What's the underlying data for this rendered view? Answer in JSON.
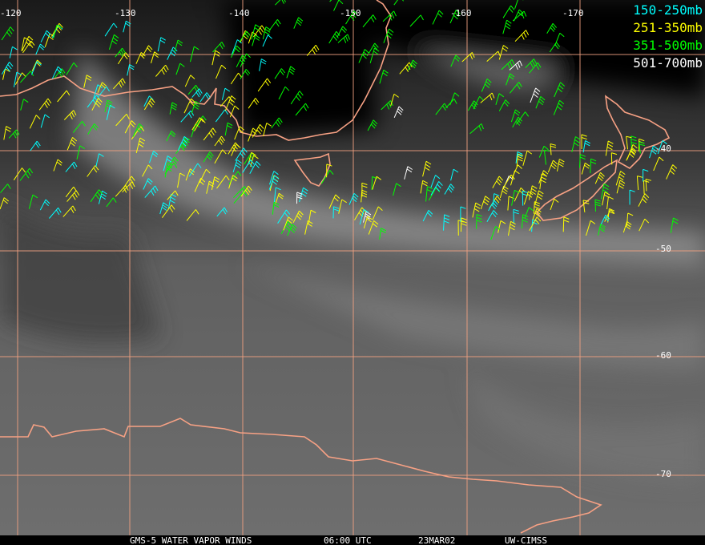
{
  "map": {
    "longitude_labels": [
      "-120",
      "-130",
      "-140",
      "-150",
      "-160",
      "-170"
    ],
    "latitude_labels": [
      "-40",
      "-50",
      "-60",
      "-70"
    ]
  },
  "legend": [
    {
      "label": "150-250mb",
      "color": "#00ffff"
    },
    {
      "label": "251-350mb",
      "color": "#ffff00"
    },
    {
      "label": "351-500mb",
      "color": "#00ff00"
    },
    {
      "label": "501-700mb",
      "color": "#ffffff"
    }
  ],
  "footer": [
    "GMS-5 WATER VAPOR WINDS",
    "06:00 UTC",
    "23MAR02",
    "UW-CIMSS"
  ]
}
